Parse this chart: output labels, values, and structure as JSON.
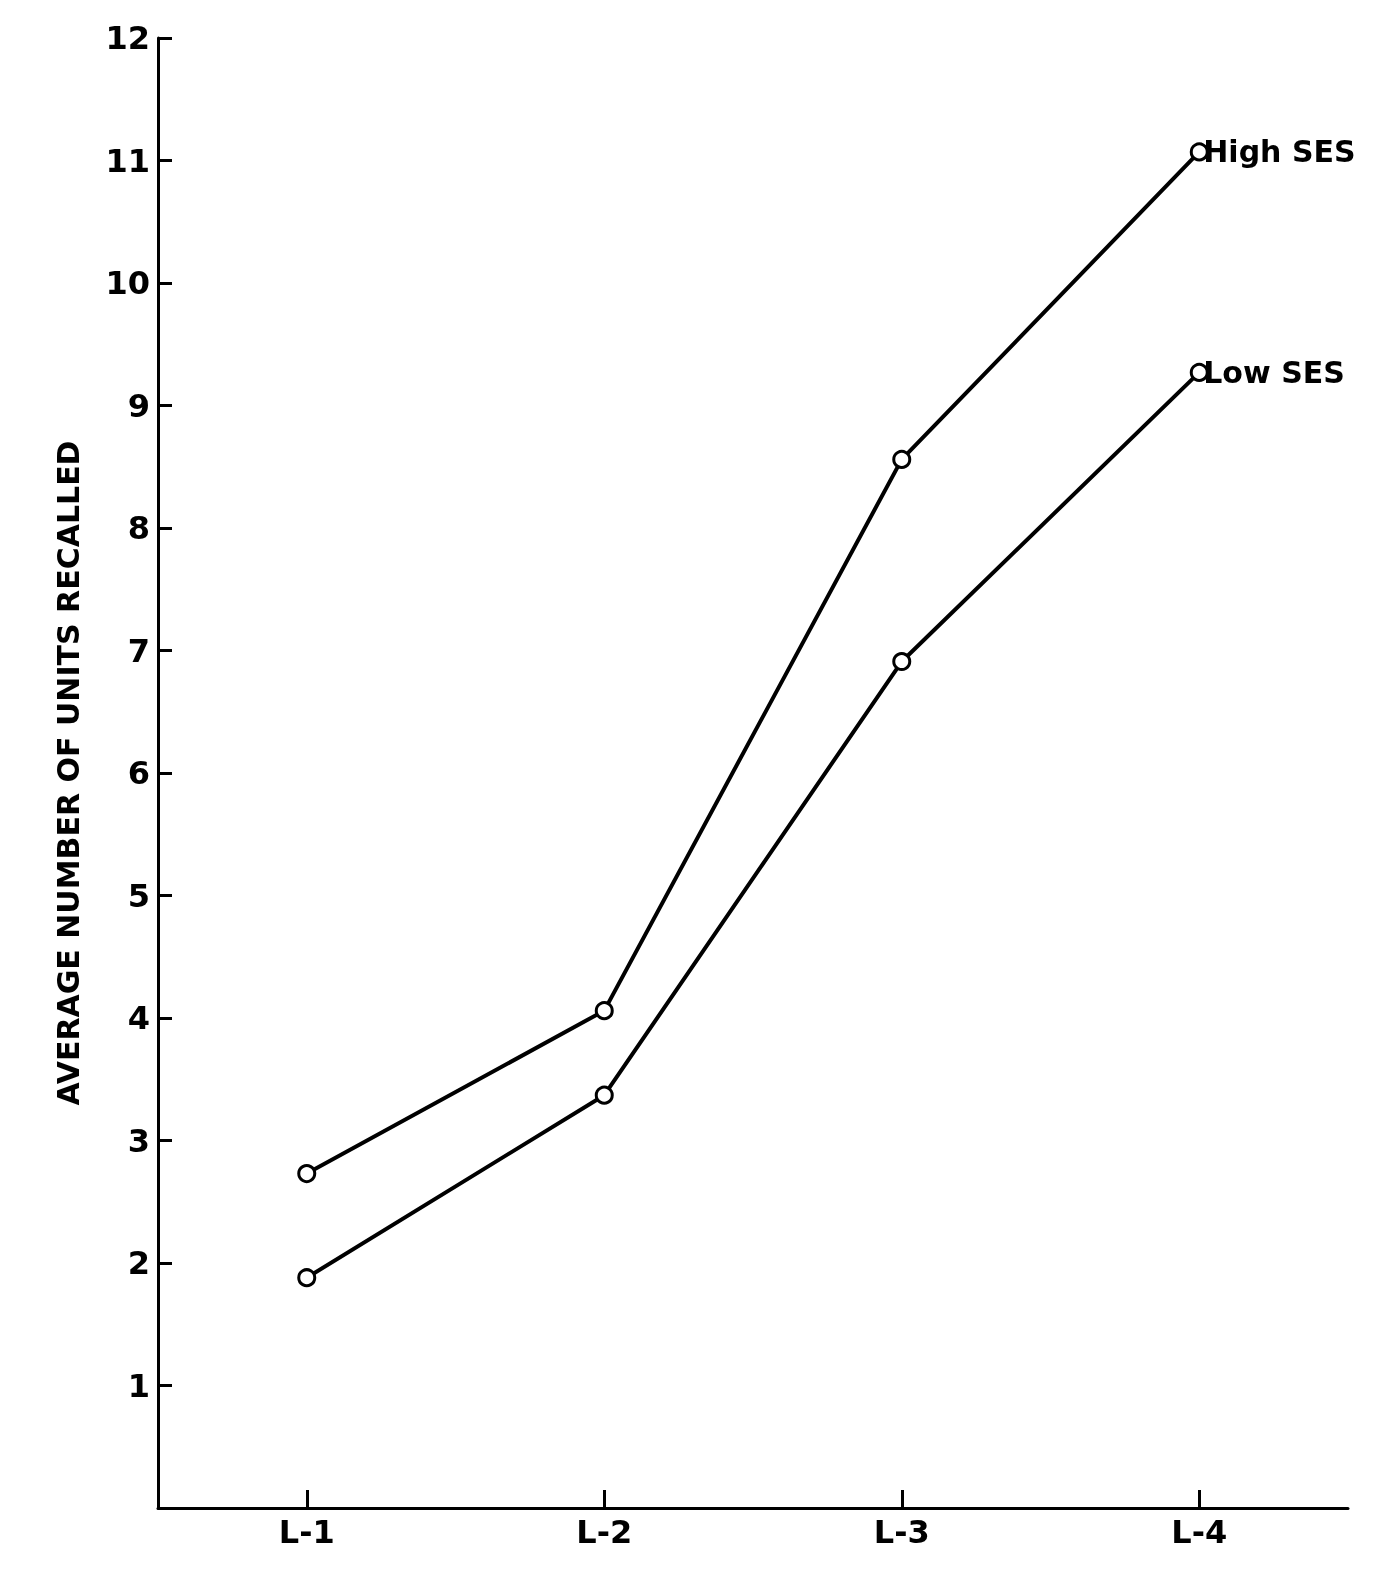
{
  "chart_data": {
    "type": "line",
    "ylabel": "AVERAGE NUMBER OF UNITS RECALLED",
    "categories": [
      "L-1",
      "L-2",
      "L-3",
      "L-4"
    ],
    "series": [
      {
        "name": "High SES",
        "color": "#000000",
        "values": [
          2.73,
          4.06,
          8.56,
          11.07
        ]
      },
      {
        "name": "Low SES",
        "color": "#000000",
        "values": [
          1.88,
          3.37,
          6.91,
          9.27
        ]
      }
    ],
    "ylim": [
      0,
      12
    ],
    "yticks": [
      1,
      2,
      3,
      4,
      5,
      6,
      7,
      8,
      9,
      10,
      11,
      12
    ],
    "grid": false,
    "legend": false,
    "marker": "circle",
    "line_style": "solid"
  }
}
